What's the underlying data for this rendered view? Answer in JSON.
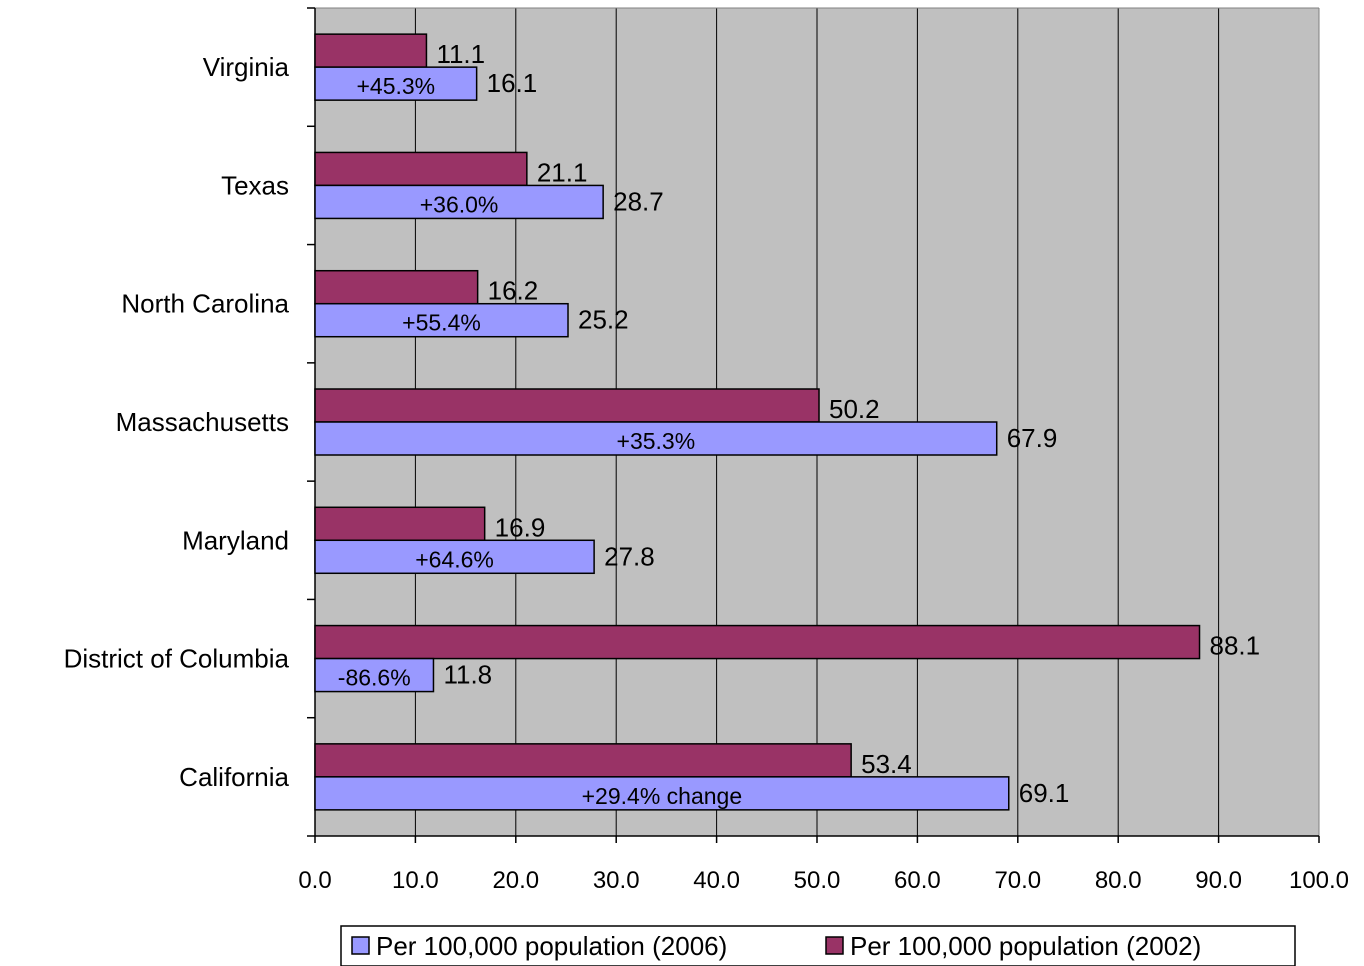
{
  "chart_data": {
    "type": "bar",
    "orientation": "horizontal",
    "categories": [
      "Virginia",
      "Texas",
      "North Carolina",
      "Massachusetts",
      "Maryland",
      "District of Columbia",
      "California"
    ],
    "series": [
      {
        "name": "Per 100,000 population (2002)",
        "color": "#993366",
        "values": [
          11.1,
          21.1,
          16.2,
          50.2,
          16.9,
          88.1,
          53.4
        ],
        "labels": [
          "11.1",
          "21.1",
          "16.2",
          "50.2",
          "16.9",
          "88.1",
          "53.4"
        ]
      },
      {
        "name": "Per 100,000 population (2006)",
        "color": "#9999FF",
        "values": [
          16.1,
          28.7,
          25.2,
          67.9,
          27.8,
          11.8,
          69.1
        ],
        "labels": [
          "16.1",
          "28.7",
          "25.2",
          "67.9",
          "27.8",
          "11.8",
          "69.1"
        ]
      }
    ],
    "change_labels": [
      "+45.3%",
      "+36.0%",
      "+55.4%",
      "+35.3%",
      "+64.6%",
      "-86.6%",
      "+29.4% change"
    ],
    "xlim": [
      0,
      100
    ],
    "x_ticks": [
      "0.0",
      "10.0",
      "20.0",
      "30.0",
      "40.0",
      "50.0",
      "60.0",
      "70.0",
      "80.0",
      "90.0",
      "100.0"
    ],
    "grid": true,
    "plot_background": "#C0C0C0",
    "legend_position": "bottom",
    "legend_order": [
      "Per 100,000 population (2006)",
      "Per 100,000 population (2002)"
    ]
  }
}
